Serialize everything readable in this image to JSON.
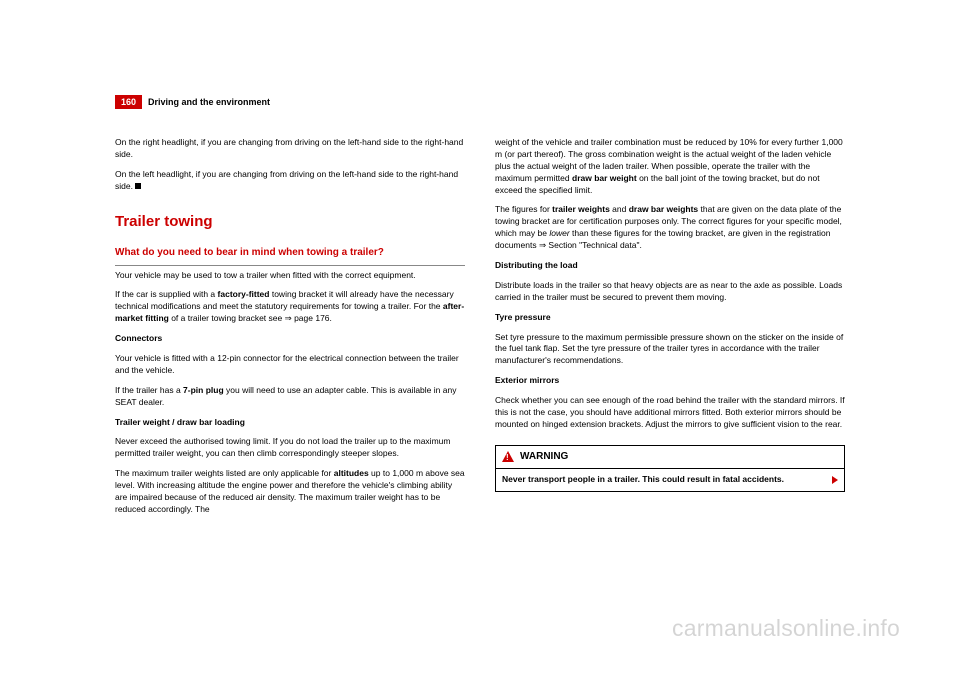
{
  "header": {
    "page_number": "160",
    "title": "Driving and the environment"
  },
  "col_left": {
    "p1": "On the right headlight, if you are changing from driving on the left-hand side to the right-hand side.",
    "p2": "On the left headlight, if you are changing from driving on the left-hand side to the right-hand side.",
    "section_title": "Trailer towing",
    "subsection": "What do you need to bear in mind when towing a trailer?",
    "p3": "Your vehicle may be used to tow a trailer when fitted with the correct equipment.",
    "p4a": "If the car is supplied with a ",
    "p4b": "factory-fitted",
    "p4c": " towing bracket it will already have the necessary technical modifications and meet the statutory requirements for towing a trailer. For the ",
    "p4d": "after-market fitting",
    "p4e": " of a trailer towing bracket see ⇒ page 176.",
    "connectors_h": "Connectors",
    "p5": "Your vehicle is fitted with a 12-pin connector for the electrical connection between the trailer and the vehicle.",
    "p6a": "If the trailer has a ",
    "p6b": "7-pin plug",
    "p6c": " you will need to use an adapter cable. This is available in any SEAT dealer.",
    "tw_h": "Trailer weight / draw bar loading",
    "p7": "Never exceed the authorised towing limit. If you do not load the trailer up to the maximum permitted trailer weight, you can then climb correspondingly steeper slopes.",
    "p8a": "The maximum trailer weights listed are only applicable for ",
    "p8b": "altitudes",
    "p8c": " up to 1,000 m above sea level. With increasing altitude the engine power and therefore the vehicle's climbing ability are impaired because of the reduced air density. The maximum trailer weight has to be reduced accordingly. The"
  },
  "col_right": {
    "p1a": "weight of the vehicle and trailer combination must be reduced by 10% for every further 1,000 m (or part thereof). The gross combination weight is the actual weight of the laden vehicle plus the actual weight of the laden trailer. When possible, operate the trailer with the maximum permitted ",
    "p1b": "draw bar weight",
    "p1c": " on the ball joint of the towing bracket, but do not exceed the specified limit.",
    "p2a": "The figures for ",
    "p2b": "trailer weights",
    "p2c": " and ",
    "p2d": "draw bar weights",
    "p2e": " that are given on the data plate of the towing bracket are for certification purposes only. The correct figures for your specific model, which may be ",
    "p2f": "lower",
    "p2g": " than these figures for the towing bracket, are given in the registration documents ⇒ Section \"Technical data\".",
    "dist_h": "Distributing the load",
    "p3": "Distribute loads in the trailer so that heavy objects are as near to the axle as possible. Loads carried in the trailer must be secured to prevent them moving.",
    "tyre_h": "Tyre pressure",
    "p4": "Set tyre pressure to the maximum permissible pressure shown on the sticker on the inside of the fuel tank flap. Set the tyre pressure of the trailer tyres in accordance with the trailer manufacturer's recommendations.",
    "ext_h": "Exterior mirrors",
    "p5": "Check whether you can see enough of the road behind the trailer with the standard mirrors. If this is not the case, you should have additional mirrors fitted. Both exterior mirrors should be mounted on hinged extension brackets. Adjust the mirrors to give sufficient vision to the rear.",
    "warning_label": "WARNING",
    "warning_text": "Never transport people in a trailer. This could result in fatal accidents."
  },
  "watermark": "carmanualsonline.info"
}
